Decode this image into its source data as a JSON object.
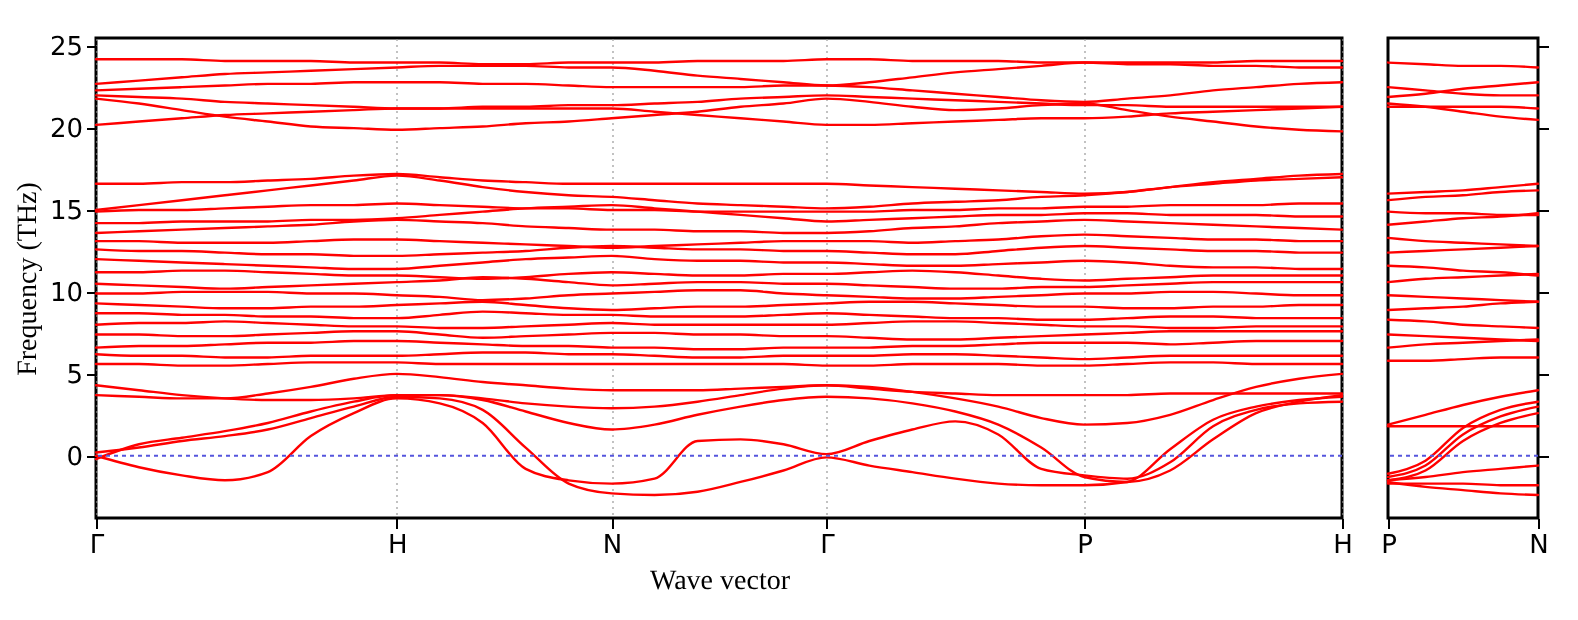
{
  "chart_data": [
    {
      "type": "line",
      "xlabel": "Wave vector",
      "ylabel": "Frequency (THz)",
      "categories": [
        "Γ",
        null,
        null,
        null,
        null,
        null,
        null,
        "H",
        null,
        null,
        null,
        null,
        "N",
        null,
        null,
        null,
        null,
        "Γ",
        null,
        null,
        null,
        null,
        null,
        "P",
        null,
        null,
        null,
        null,
        null,
        "H"
      ],
      "ylim": [
        -3.8,
        25.5
      ],
      "yticks": [
        0,
        5,
        10,
        15,
        20,
        25
      ],
      "grid": "x",
      "line_style": "solid",
      "ref_lines": [
        {
          "axis": "y",
          "value": 0,
          "color": "#5555dd",
          "line_style": "dotted"
        }
      ],
      "series": [
        {
          "color": "#ff0000",
          "values": [
            24.2,
            24.2,
            24.2,
            24.1,
            24.1,
            24.1,
            24.0,
            24.0,
            24.0,
            23.9,
            23.9,
            24.0,
            24.0,
            24.0,
            24.1,
            24.1,
            24.1,
            24.2,
            24.2,
            24.1,
            24.1,
            24.1,
            24.0,
            24.0,
            24.0,
            24.0,
            24.0,
            24.1,
            24.1,
            24.1
          ]
        },
        {
          "color": "#ff0000",
          "values": [
            22.7,
            22.9,
            23.1,
            23.3,
            23.4,
            23.5,
            23.6,
            23.7,
            23.8,
            23.8,
            23.8,
            23.7,
            23.7,
            23.5,
            23.2,
            23.0,
            22.8,
            22.6,
            22.8,
            23.1,
            23.4,
            23.6,
            23.8,
            24.0,
            23.9,
            23.9,
            23.8,
            23.8,
            23.7,
            23.7
          ]
        },
        {
          "color": "#ff0000",
          "values": [
            22.3,
            22.4,
            22.5,
            22.6,
            22.7,
            22.7,
            22.8,
            22.8,
            22.8,
            22.7,
            22.7,
            22.6,
            22.5,
            22.5,
            22.5,
            22.5,
            22.6,
            22.6,
            22.5,
            22.3,
            22.1,
            21.9,
            21.7,
            21.6,
            21.8,
            22.0,
            22.3,
            22.5,
            22.7,
            22.8
          ]
        },
        {
          "color": "#ff0000",
          "values": [
            22.0,
            21.9,
            21.8,
            21.6,
            21.5,
            21.4,
            21.3,
            21.2,
            21.2,
            21.3,
            21.3,
            21.4,
            21.4,
            21.5,
            21.6,
            21.8,
            21.9,
            22.0,
            21.9,
            21.8,
            21.7,
            21.6,
            21.5,
            21.4,
            21.4,
            21.3,
            21.3,
            21.3,
            21.3,
            21.3
          ]
        },
        {
          "color": "#ff0000",
          "values": [
            21.8,
            21.5,
            21.1,
            20.7,
            20.4,
            20.1,
            20.0,
            19.9,
            20.0,
            20.1,
            20.3,
            20.4,
            20.6,
            20.8,
            21.0,
            21.3,
            21.5,
            21.8,
            21.6,
            21.3,
            21.1,
            21.2,
            21.4,
            21.5,
            21.1,
            20.7,
            20.4,
            20.1,
            19.9,
            19.8
          ]
        },
        {
          "color": "#ff0000",
          "values": [
            20.2,
            20.4,
            20.6,
            20.8,
            20.9,
            21.0,
            21.1,
            21.2,
            21.2,
            21.2,
            21.2,
            21.2,
            21.2,
            21.0,
            20.8,
            20.6,
            20.4,
            20.2,
            20.2,
            20.3,
            20.4,
            20.5,
            20.6,
            20.6,
            20.7,
            20.9,
            21.0,
            21.1,
            21.2,
            21.3
          ]
        },
        {
          "color": "#ff0000",
          "values": [
            16.6,
            16.6,
            16.7,
            16.7,
            16.8,
            16.9,
            17.1,
            17.2,
            17.0,
            16.8,
            16.7,
            16.6,
            16.6,
            16.6,
            16.6,
            16.6,
            16.6,
            16.6,
            16.5,
            16.4,
            16.3,
            16.2,
            16.1,
            16.0,
            16.1,
            16.4,
            16.7,
            16.9,
            17.1,
            17.2
          ]
        },
        {
          "color": "#ff0000",
          "values": [
            15.0,
            15.3,
            15.6,
            15.9,
            16.2,
            16.5,
            16.8,
            17.1,
            16.8,
            16.4,
            16.1,
            15.9,
            15.8,
            15.6,
            15.4,
            15.3,
            15.2,
            15.1,
            15.2,
            15.4,
            15.5,
            15.6,
            15.8,
            15.9,
            16.1,
            16.4,
            16.6,
            16.8,
            16.9,
            17.0
          ]
        },
        {
          "color": "#ff0000",
          "values": [
            14.9,
            15.0,
            15.0,
            15.1,
            15.2,
            15.3,
            15.3,
            15.4,
            15.3,
            15.2,
            15.1,
            15.1,
            15.0,
            15.0,
            14.9,
            14.9,
            14.9,
            14.9,
            14.9,
            15.0,
            15.0,
            15.1,
            15.1,
            15.2,
            15.2,
            15.3,
            15.3,
            15.3,
            15.4,
            15.4
          ]
        },
        {
          "color": "#ff0000",
          "values": [
            14.2,
            14.2,
            14.3,
            14.3,
            14.3,
            14.4,
            14.4,
            14.5,
            14.7,
            14.9,
            15.1,
            15.2,
            15.3,
            15.1,
            14.9,
            14.7,
            14.5,
            14.3,
            14.4,
            14.5,
            14.6,
            14.7,
            14.7,
            14.8,
            14.8,
            14.7,
            14.7,
            14.7,
            14.6,
            14.6
          ]
        },
        {
          "color": "#ff0000",
          "values": [
            13.6,
            13.7,
            13.8,
            13.9,
            14.0,
            14.1,
            14.3,
            14.4,
            14.3,
            14.2,
            14.0,
            13.9,
            13.8,
            13.8,
            13.7,
            13.7,
            13.6,
            13.6,
            13.7,
            13.9,
            14.0,
            14.2,
            14.3,
            14.4,
            14.3,
            14.2,
            14.1,
            14.0,
            13.9,
            13.8
          ]
        },
        {
          "color": "#ff0000",
          "values": [
            13.1,
            13.1,
            13.0,
            13.0,
            13.0,
            13.1,
            13.2,
            13.2,
            13.1,
            13.0,
            12.9,
            12.8,
            12.7,
            12.8,
            12.9,
            13.0,
            13.1,
            13.1,
            13.1,
            13.0,
            13.1,
            13.2,
            13.4,
            13.5,
            13.4,
            13.3,
            13.2,
            13.2,
            13.1,
            13.1
          ]
        },
        {
          "color": "#ff0000",
          "values": [
            12.6,
            12.5,
            12.5,
            12.4,
            12.3,
            12.3,
            12.2,
            12.2,
            12.3,
            12.4,
            12.5,
            12.7,
            12.8,
            12.7,
            12.6,
            12.6,
            12.5,
            12.5,
            12.4,
            12.3,
            12.3,
            12.5,
            12.7,
            12.8,
            12.7,
            12.6,
            12.5,
            12.5,
            12.4,
            12.4
          ]
        },
        {
          "color": "#ff0000",
          "values": [
            12.0,
            11.9,
            11.8,
            11.7,
            11.6,
            11.5,
            11.4,
            11.4,
            11.6,
            11.8,
            12.0,
            12.1,
            12.2,
            12.0,
            11.9,
            11.9,
            11.8,
            11.8,
            11.7,
            11.6,
            11.6,
            11.7,
            11.8,
            11.9,
            11.8,
            11.6,
            11.5,
            11.5,
            11.4,
            11.4
          ]
        },
        {
          "color": "#ff0000",
          "values": [
            11.2,
            11.2,
            11.3,
            11.3,
            11.2,
            11.1,
            11.0,
            11.0,
            10.9,
            10.8,
            10.9,
            11.1,
            11.2,
            11.1,
            11.0,
            11.0,
            11.1,
            11.1,
            11.2,
            11.3,
            11.2,
            11.0,
            10.8,
            10.7,
            10.8,
            10.9,
            11.0,
            11.0,
            11.0,
            11.0
          ]
        },
        {
          "color": "#ff0000",
          "values": [
            10.5,
            10.4,
            10.3,
            10.2,
            10.3,
            10.4,
            10.5,
            10.6,
            10.7,
            10.9,
            10.8,
            10.6,
            10.4,
            10.5,
            10.6,
            10.6,
            10.5,
            10.5,
            10.4,
            10.3,
            10.2,
            10.2,
            10.3,
            10.3,
            10.4,
            10.5,
            10.6,
            10.6,
            10.6,
            10.6
          ]
        },
        {
          "color": "#ff0000",
          "values": [
            9.9,
            9.9,
            10.0,
            10.0,
            10.0,
            9.9,
            9.9,
            9.8,
            9.7,
            9.5,
            9.6,
            9.8,
            9.9,
            10.0,
            10.1,
            10.1,
            9.9,
            9.8,
            9.7,
            9.6,
            9.6,
            9.7,
            9.8,
            9.9,
            9.9,
            10.0,
            10.0,
            9.9,
            9.8,
            9.8
          ]
        },
        {
          "color": "#ff0000",
          "values": [
            9.3,
            9.2,
            9.1,
            9.0,
            9.0,
            9.1,
            9.1,
            9.2,
            9.3,
            9.4,
            9.2,
            9.0,
            8.9,
            9.0,
            9.1,
            9.1,
            9.2,
            9.3,
            9.4,
            9.4,
            9.3,
            9.2,
            9.1,
            9.1,
            9.0,
            9.0,
            9.1,
            9.1,
            9.2,
            9.2
          ]
        },
        {
          "color": "#ff0000",
          "values": [
            8.7,
            8.7,
            8.6,
            8.6,
            8.5,
            8.5,
            8.4,
            8.4,
            8.6,
            8.8,
            8.7,
            8.6,
            8.6,
            8.5,
            8.5,
            8.5,
            8.6,
            8.7,
            8.6,
            8.5,
            8.4,
            8.4,
            8.3,
            8.3,
            8.4,
            8.5,
            8.5,
            8.4,
            8.4,
            8.4
          ]
        },
        {
          "color": "#ff0000",
          "values": [
            8.0,
            8.1,
            8.1,
            8.2,
            8.1,
            8.0,
            7.9,
            7.9,
            7.8,
            7.8,
            7.9,
            8.0,
            8.1,
            8.0,
            8.0,
            8.0,
            8.0,
            8.0,
            8.1,
            8.2,
            8.2,
            8.1,
            8.0,
            7.9,
            7.9,
            7.8,
            7.8,
            7.9,
            7.9,
            7.9
          ]
        },
        {
          "color": "#ff0000",
          "values": [
            7.4,
            7.4,
            7.3,
            7.3,
            7.4,
            7.5,
            7.6,
            7.6,
            7.4,
            7.2,
            7.3,
            7.4,
            7.5,
            7.5,
            7.4,
            7.4,
            7.3,
            7.3,
            7.2,
            7.1,
            7.1,
            7.2,
            7.3,
            7.4,
            7.5,
            7.6,
            7.6,
            7.6,
            7.6,
            7.6
          ]
        },
        {
          "color": "#ff0000",
          "values": [
            6.6,
            6.7,
            6.7,
            6.8,
            6.9,
            6.9,
            7.0,
            7.0,
            6.9,
            6.8,
            6.7,
            6.7,
            6.6,
            6.6,
            6.5,
            6.5,
            6.6,
            6.6,
            6.6,
            6.7,
            6.7,
            6.8,
            6.9,
            6.9,
            6.9,
            6.8,
            6.9,
            7.0,
            7.0,
            7.0
          ]
        },
        {
          "color": "#ff0000",
          "values": [
            6.2,
            6.1,
            6.1,
            6.0,
            6.0,
            6.1,
            6.1,
            6.1,
            6.2,
            6.3,
            6.3,
            6.2,
            6.2,
            6.1,
            6.0,
            6.0,
            6.1,
            6.1,
            6.1,
            6.2,
            6.2,
            6.1,
            6.0,
            5.9,
            6.0,
            6.1,
            6.1,
            6.1,
            6.1,
            6.1
          ]
        },
        {
          "color": "#ff0000",
          "values": [
            5.6,
            5.6,
            5.5,
            5.5,
            5.6,
            5.7,
            5.7,
            5.7,
            5.6,
            5.6,
            5.6,
            5.6,
            5.6,
            5.6,
            5.6,
            5.6,
            5.6,
            5.5,
            5.5,
            5.6,
            5.6,
            5.6,
            5.5,
            5.5,
            5.6,
            5.7,
            5.7,
            5.6,
            5.6,
            5.6
          ]
        },
        {
          "color": "#ff0000",
          "values": [
            0,
            -0.7,
            -1.2,
            -1.5,
            -1.0,
            1.2,
            2.6,
            3.5,
            3.2,
            2.0,
            -0.8,
            -1.5,
            -1.7,
            -1.4,
            0.9,
            1.0,
            0.7,
            0.1,
            0.9,
            1.6,
            2.1,
            1.3,
            -0.8,
            -1.2,
            -1.4,
            -0.4,
            1.8,
            2.8,
            3.2,
            3.3
          ]
        },
        {
          "color": "#ff0000",
          "values": [
            0.2,
            0.5,
            0.9,
            1.2,
            1.6,
            2.3,
            3.0,
            3.6,
            3.5,
            2.8,
            0.5,
            -1.7,
            -2.3,
            -2.4,
            -2.2,
            -1.6,
            -0.9,
            -0.1,
            -0.6,
            -1.0,
            -1.4,
            -1.7,
            -1.8,
            -1.8,
            -1.6,
            0.4,
            2.2,
            3.0,
            3.4,
            3.6
          ]
        },
        {
          "color": "#ff0000",
          "values": [
            -0.2,
            0.7,
            1.1,
            1.5,
            2.0,
            2.7,
            3.3,
            3.7,
            3.7,
            3.4,
            2.7,
            2.0,
            1.6,
            1.9,
            2.5,
            3.0,
            3.4,
            3.6,
            3.5,
            3.2,
            2.7,
            1.9,
            0.5,
            -1.3,
            -1.6,
            -0.9,
            1.0,
            2.6,
            3.3,
            3.7
          ]
        },
        {
          "color": "#ff0000",
          "values": [
            4.3,
            4.0,
            3.7,
            3.5,
            3.4,
            3.4,
            3.5,
            3.7,
            3.7,
            3.5,
            3.2,
            3.0,
            2.9,
            3.0,
            3.3,
            3.7,
            4.1,
            4.3,
            4.2,
            3.9,
            3.5,
            3.0,
            2.3,
            1.9,
            2.0,
            2.5,
            3.4,
            4.2,
            4.7,
            5.0
          ]
        },
        {
          "color": "#ff0000",
          "values": [
            3.7,
            3.6,
            3.5,
            3.5,
            3.8,
            4.2,
            4.7,
            5.0,
            4.8,
            4.5,
            4.3,
            4.1,
            4.0,
            4.0,
            4.0,
            4.1,
            4.2,
            4.3,
            4.1,
            3.9,
            3.8,
            3.7,
            3.7,
            3.7,
            3.7,
            3.8,
            3.8,
            3.8,
            3.8,
            3.8
          ]
        }
      ]
    },
    {
      "type": "line",
      "categories": [
        "P",
        null,
        null,
        null,
        "N"
      ],
      "ylim": [
        -3.8,
        25.5
      ],
      "yticks": [
        0,
        5,
        10,
        15,
        20,
        25
      ],
      "tick_labels": "x",
      "line_style": "solid",
      "ref_lines": [
        {
          "axis": "y",
          "value": 0,
          "color": "#5555dd",
          "line_style": "dotted"
        }
      ],
      "series": [
        {
          "color": "#ff0000",
          "values": [
            24.0,
            23.9,
            23.8,
            23.8,
            23.7
          ]
        },
        {
          "color": "#ff0000",
          "values": [
            22.5,
            22.3,
            22.1,
            22.0,
            22.0
          ]
        },
        {
          "color": "#ff0000",
          "values": [
            21.9,
            22.1,
            22.4,
            22.6,
            22.8
          ]
        },
        {
          "color": "#ff0000",
          "values": [
            21.5,
            21.3,
            21.0,
            20.7,
            20.5
          ]
        },
        {
          "color": "#ff0000",
          "values": [
            21.3,
            21.3,
            21.3,
            21.3,
            21.2
          ]
        },
        {
          "color": "#ff0000",
          "values": [
            16.0,
            16.1,
            16.2,
            16.4,
            16.6
          ]
        },
        {
          "color": "#ff0000",
          "values": [
            15.6,
            15.8,
            15.9,
            16.1,
            16.2
          ]
        },
        {
          "color": "#ff0000",
          "values": [
            14.9,
            14.8,
            14.8,
            14.7,
            14.7
          ]
        },
        {
          "color": "#ff0000",
          "values": [
            14.1,
            14.3,
            14.5,
            14.6,
            14.8
          ]
        },
        {
          "color": "#ff0000",
          "values": [
            13.3,
            13.1,
            13.0,
            12.9,
            12.8
          ]
        },
        {
          "color": "#ff0000",
          "values": [
            12.4,
            12.5,
            12.6,
            12.7,
            12.8
          ]
        },
        {
          "color": "#ff0000",
          "values": [
            11.6,
            11.5,
            11.3,
            11.2,
            11.0
          ]
        },
        {
          "color": "#ff0000",
          "values": [
            10.6,
            10.8,
            10.9,
            11.0,
            11.1
          ]
        },
        {
          "color": "#ff0000",
          "values": [
            9.8,
            9.7,
            9.6,
            9.5,
            9.4
          ]
        },
        {
          "color": "#ff0000",
          "values": [
            8.9,
            9.0,
            9.1,
            9.3,
            9.4
          ]
        },
        {
          "color": "#ff0000",
          "values": [
            8.3,
            8.2,
            8.0,
            7.9,
            7.8
          ]
        },
        {
          "color": "#ff0000",
          "values": [
            7.4,
            7.3,
            7.2,
            7.1,
            7.0
          ]
        },
        {
          "color": "#ff0000",
          "values": [
            6.6,
            6.8,
            6.9,
            7.0,
            7.1
          ]
        },
        {
          "color": "#ff0000",
          "values": [
            5.8,
            5.8,
            5.9,
            6.0,
            6.0
          ]
        },
        {
          "color": "#ff0000",
          "values": [
            1.8,
            1.8,
            1.8,
            1.8,
            1.8
          ]
        },
        {
          "color": "#ff0000",
          "values": [
            1.9,
            2.5,
            3.1,
            3.6,
            4.0
          ]
        },
        {
          "color": "#ff0000",
          "values": [
            -1.1,
            -0.3,
            1.7,
            2.8,
            3.3
          ]
        },
        {
          "color": "#ff0000",
          "values": [
            -1.3,
            -0.6,
            1.3,
            2.4,
            3.0
          ]
        },
        {
          "color": "#ff0000",
          "values": [
            -1.5,
            -0.9,
            0.9,
            2.0,
            2.6
          ]
        },
        {
          "color": "#ff0000",
          "values": [
            -1.5,
            -1.3,
            -1.0,
            -0.8,
            -0.6
          ]
        },
        {
          "color": "#ff0000",
          "values": [
            -1.6,
            -1.9,
            -2.1,
            -2.3,
            -2.4
          ]
        },
        {
          "color": "#ff0000",
          "values": [
            -1.7,
            -1.7,
            -1.7,
            -1.8,
            -1.8
          ]
        }
      ]
    }
  ]
}
